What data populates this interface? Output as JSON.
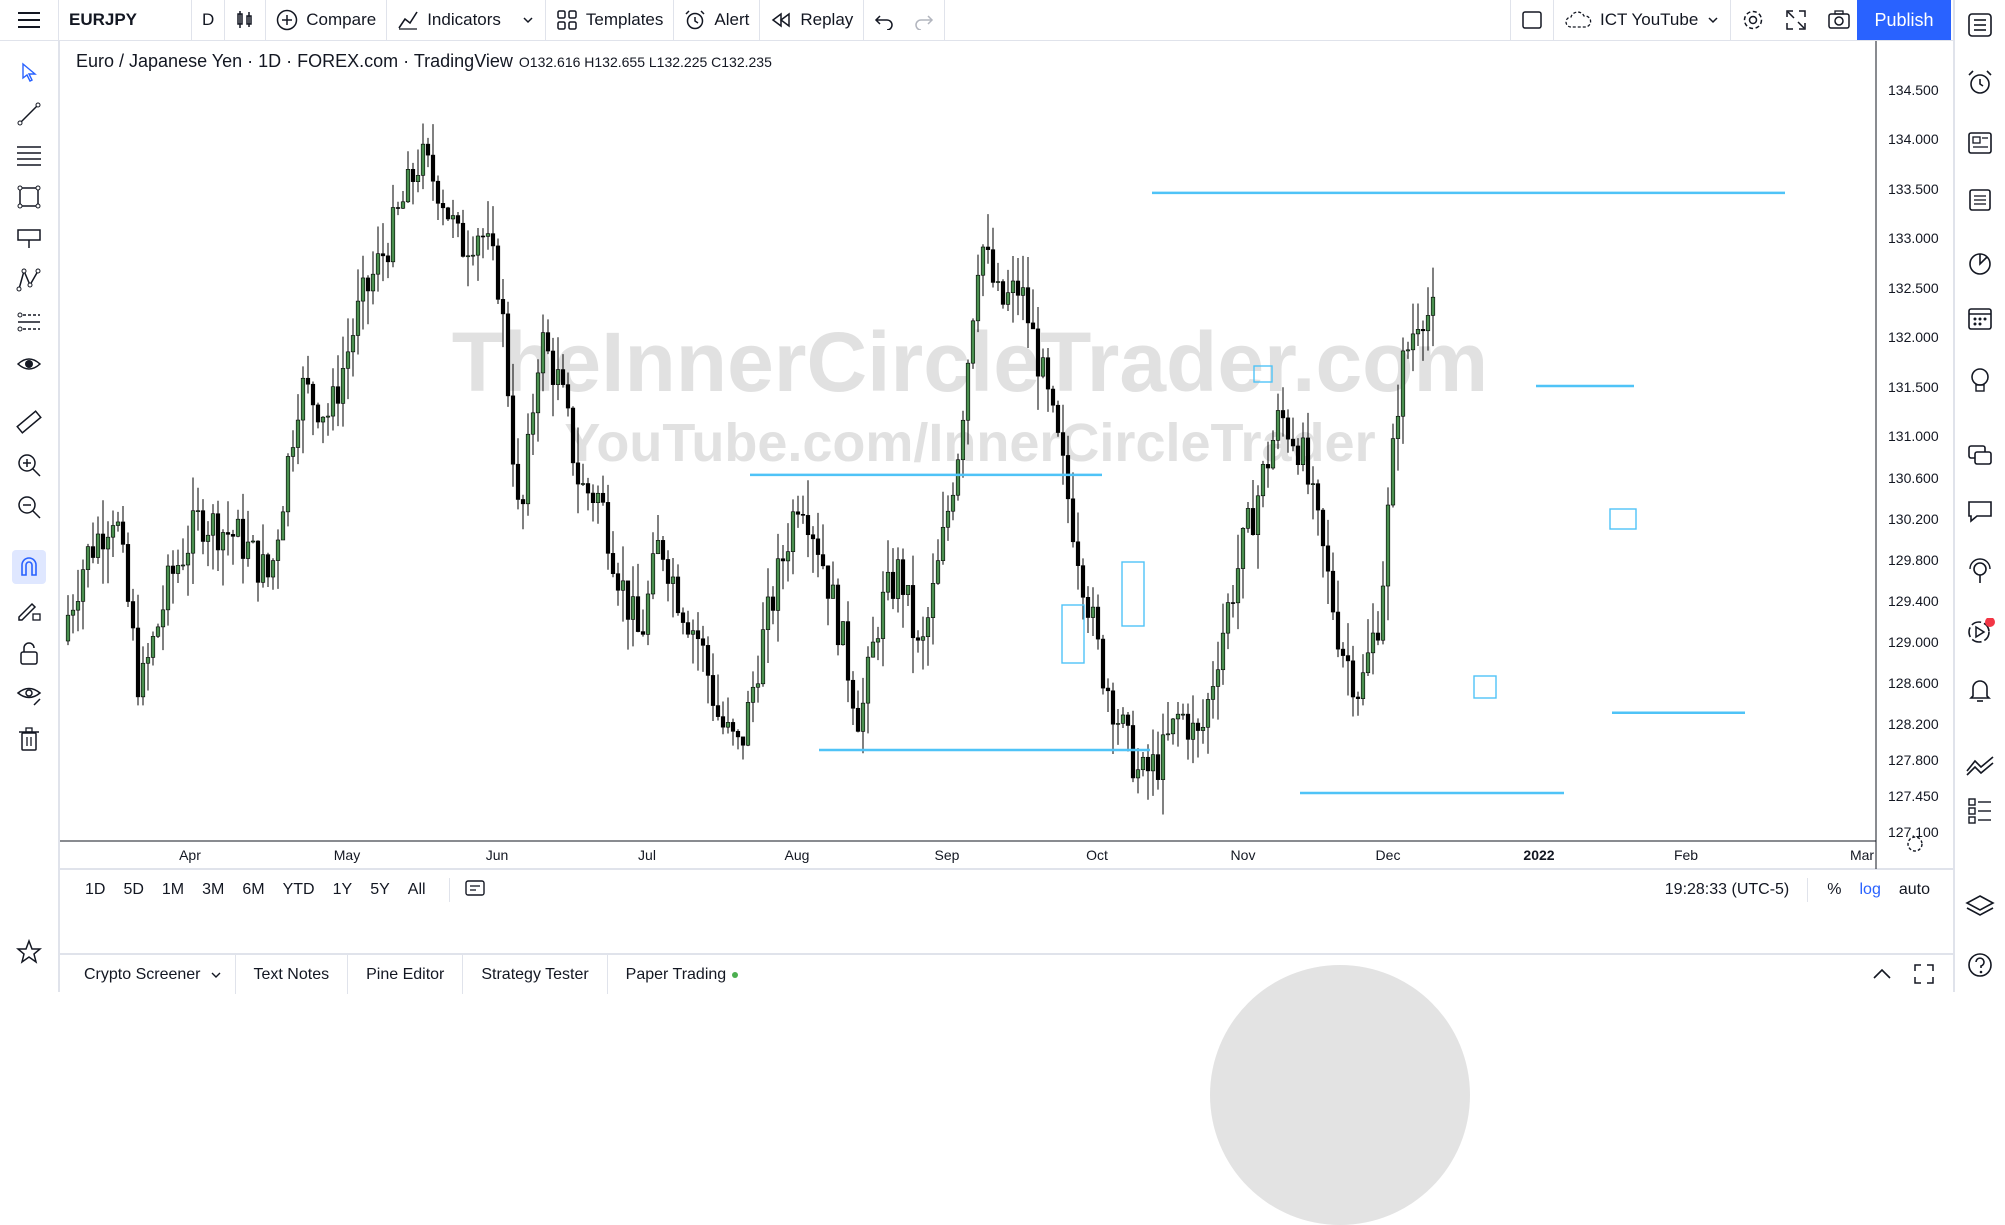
{
  "toolbar": {
    "symbol": "EURJPY",
    "interval": "D",
    "compare": "Compare",
    "indicators": "Indicators",
    "templates": "Templates",
    "alert": "Alert",
    "replay": "Replay",
    "layout_name": "ICT YouTube",
    "publish": "Publish"
  },
  "legend": {
    "title": "Euro / Japanese Yen · 1D · FOREX.com · TradingView",
    "ohlc": "O132.616 H132.655 L132.225 C132.235"
  },
  "watermark": {
    "line1": "TheInnerCircleTrader.com",
    "line2": "YouTube.com/InnerCircleTrader"
  },
  "chart_data": {
    "type": "candlestick",
    "y_ticks": [
      "134.500",
      "134.000",
      "133.500",
      "133.000",
      "132.500",
      "132.000",
      "131.500",
      "131.000",
      "130.600",
      "130.200",
      "129.800",
      "129.400",
      "129.000",
      "128.600",
      "128.200",
      "127.800",
      "127.450",
      "127.100"
    ],
    "x_ticks": [
      "Apr",
      "May",
      "Jun",
      "Jul",
      "Aug",
      "Sep",
      "Oct",
      "Nov",
      "Dec",
      "2022",
      "Feb",
      "Mar"
    ],
    "scale": "log",
    "colors": {
      "up": "#4a8f4f",
      "down": "#000000",
      "level": "#4fc3f7"
    },
    "levels": [
      {
        "price": 133.45,
        "from": "Oct",
        "to": "Feb"
      },
      {
        "price": 130.62,
        "from": "Jul",
        "to": "Sep"
      },
      {
        "price": 127.9,
        "from": "Aug",
        "to": "Oct"
      },
      {
        "price": 127.47,
        "from": "Nov",
        "to": "2022"
      },
      {
        "price": 131.5,
        "from": "2022",
        "to": "Feb"
      },
      {
        "price": 128.3,
        "from": "2022",
        "to": "Feb"
      }
    ]
  },
  "range_bar": {
    "ranges": [
      "1D",
      "5D",
      "1M",
      "3M",
      "6M",
      "YTD",
      "1Y",
      "5Y",
      "All"
    ],
    "time": "19:28:33 (UTC-5)",
    "percent": "%",
    "log": "log",
    "auto": "auto"
  },
  "bottom_tabs": [
    "Crypto Screener",
    "Text Notes",
    "Pine Editor",
    "Strategy Tester",
    "Paper Trading"
  ]
}
